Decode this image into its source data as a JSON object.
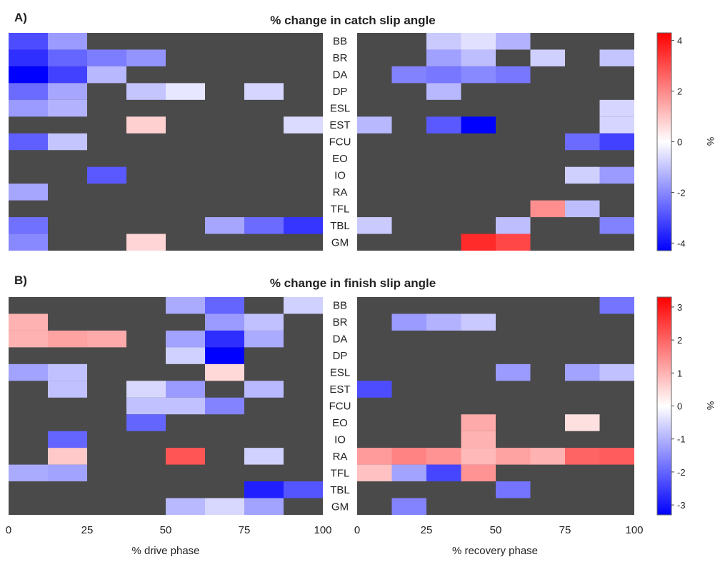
{
  "chart_data": [
    {
      "type": "heatmap",
      "panel_label": "A)",
      "title": "% change in catch slip angle",
      "muscles": [
        "BB",
        "BR",
        "DA",
        "DP",
        "ESL",
        "EST",
        "FCU",
        "EO",
        "IO",
        "RA",
        "TFL",
        "TBL",
        "GM"
      ],
      "colorbar": {
        "label": "%",
        "min": -4.3,
        "max": 4.3,
        "ticks": [
          "4",
          "2",
          "0",
          "-2",
          "-4"
        ],
        "tick_values": [
          4,
          2,
          0,
          -2,
          -4
        ]
      },
      "drive": {
        "xlabel": "",
        "xticks": [],
        "bins_percent": [
          0,
          12.5,
          25,
          37.5,
          50,
          62.5,
          75,
          87.5,
          100
        ],
        "values": [
          [
            -3.0,
            -1.7,
            null,
            null,
            null,
            null,
            null,
            null
          ],
          [
            -3.5,
            -2.6,
            -2.2,
            -1.8,
            null,
            null,
            null,
            null
          ],
          [
            -4.3,
            -3.2,
            -1.2,
            null,
            null,
            null,
            null,
            null
          ],
          [
            -2.5,
            -1.5,
            null,
            -1.0,
            -0.4,
            null,
            -0.7,
            null
          ],
          [
            -1.7,
            -1.3,
            null,
            null,
            null,
            null,
            null,
            null
          ],
          [
            null,
            null,
            null,
            0.8,
            null,
            null,
            null,
            -0.6
          ],
          [
            -2.7,
            -1.0,
            null,
            null,
            null,
            null,
            null,
            null
          ],
          [
            null,
            null,
            null,
            null,
            null,
            null,
            null,
            null
          ],
          [
            null,
            null,
            -2.8,
            null,
            null,
            null,
            null,
            null
          ],
          [
            -1.5,
            null,
            null,
            null,
            null,
            null,
            null,
            null
          ],
          [
            null,
            null,
            null,
            null,
            null,
            null,
            null,
            null
          ],
          [
            -2.4,
            null,
            null,
            null,
            null,
            -1.5,
            -2.5,
            -3.4
          ],
          [
            -2.0,
            null,
            null,
            0.7,
            null,
            null,
            null,
            null
          ]
        ]
      },
      "recovery": {
        "xlabel": "",
        "xticks": [],
        "bins_percent": [
          0,
          12.5,
          25,
          37.5,
          50,
          62.5,
          75,
          87.5,
          100
        ],
        "values": [
          [
            null,
            null,
            -0.9,
            -0.5,
            -1.3,
            null,
            null,
            null
          ],
          [
            null,
            null,
            -1.6,
            -1.1,
            null,
            -0.8,
            null,
            -1.0
          ],
          [
            null,
            -2.1,
            -2.3,
            -2.0,
            -2.3,
            null,
            null,
            null
          ],
          [
            null,
            null,
            -1.2,
            null,
            null,
            null,
            null,
            null
          ],
          [
            null,
            null,
            null,
            null,
            null,
            null,
            null,
            -0.7
          ],
          [
            -1.2,
            null,
            -2.8,
            -4.3,
            null,
            null,
            null,
            -0.7
          ],
          [
            null,
            null,
            null,
            null,
            null,
            null,
            -2.5,
            -3.2
          ],
          [
            null,
            null,
            null,
            null,
            null,
            null,
            null,
            null
          ],
          [
            null,
            null,
            null,
            null,
            null,
            null,
            -0.8,
            -1.7
          ],
          [
            null,
            null,
            null,
            null,
            null,
            null,
            null,
            null
          ],
          [
            null,
            null,
            null,
            null,
            null,
            1.9,
            -1.1,
            null
          ],
          [
            -0.9,
            null,
            null,
            null,
            -1.1,
            null,
            null,
            -2.1
          ],
          [
            null,
            null,
            null,
            3.6,
            3.1,
            null,
            null,
            null
          ]
        ]
      }
    },
    {
      "type": "heatmap",
      "panel_label": "B)",
      "title": "% change in finish slip angle",
      "muscles": [
        "BB",
        "BR",
        "DA",
        "DP",
        "ESL",
        "EST",
        "FCU",
        "EO",
        "IO",
        "RA",
        "TFL",
        "TBL",
        "GM"
      ],
      "colorbar": {
        "label": "%",
        "min": -3.3,
        "max": 3.3,
        "ticks": [
          "3",
          "2",
          "1",
          "0",
          "-1",
          "-2",
          "-3"
        ],
        "tick_values": [
          3,
          2,
          1,
          0,
          -1,
          -2,
          -3
        ]
      },
      "drive": {
        "xlabel": "% drive phase",
        "xticks": [
          "0",
          "25",
          "50",
          "75",
          "100"
        ],
        "bins_percent": [
          0,
          12.5,
          25,
          37.5,
          50,
          62.5,
          75,
          87.5,
          100
        ],
        "values": [
          [
            null,
            null,
            null,
            null,
            -1.1,
            -2.0,
            null,
            -0.6
          ],
          [
            1.0,
            null,
            null,
            null,
            null,
            -1.3,
            -0.8,
            null
          ],
          [
            1.0,
            1.2,
            1.1,
            null,
            -1.2,
            -2.7,
            -1.1,
            null
          ],
          [
            null,
            null,
            null,
            null,
            -0.6,
            -3.3,
            null,
            null
          ],
          [
            -1.2,
            -0.8,
            null,
            null,
            null,
            0.5,
            null,
            null
          ],
          [
            null,
            -0.8,
            null,
            -0.5,
            -1.3,
            null,
            -0.9,
            null
          ],
          [
            null,
            null,
            null,
            -0.8,
            -0.8,
            -1.6,
            null,
            null
          ],
          [
            null,
            null,
            null,
            -2.0,
            null,
            null,
            null,
            null
          ],
          [
            null,
            -2.0,
            null,
            null,
            null,
            null,
            null,
            null
          ],
          [
            null,
            0.7,
            null,
            null,
            2.2,
            null,
            -0.6,
            null
          ],
          [
            -1.1,
            -1.2,
            null,
            null,
            null,
            null,
            null,
            null
          ],
          [
            null,
            null,
            null,
            null,
            null,
            null,
            -2.9,
            -2.2
          ],
          [
            null,
            null,
            null,
            null,
            -0.9,
            -0.5,
            -1.2,
            null
          ]
        ]
      },
      "recovery": {
        "xlabel": "% recovery phase",
        "xticks": [
          "0",
          "25",
          "50",
          "75",
          "100"
        ],
        "bins_percent": [
          0,
          12.5,
          25,
          37.5,
          50,
          62.5,
          75,
          87.5,
          100
        ],
        "values": [
          [
            null,
            null,
            null,
            null,
            null,
            null,
            null,
            -1.8
          ],
          [
            null,
            -1.3,
            -1.0,
            -0.7,
            null,
            null,
            null,
            null
          ],
          [
            null,
            null,
            null,
            null,
            null,
            null,
            null,
            null
          ],
          [
            null,
            null,
            null,
            null,
            null,
            null,
            null,
            null
          ],
          [
            null,
            null,
            null,
            null,
            -1.3,
            null,
            -1.2,
            -0.8
          ],
          [
            -2.3,
            null,
            null,
            null,
            null,
            null,
            null,
            null
          ],
          [
            null,
            null,
            null,
            null,
            null,
            null,
            null,
            null
          ],
          [
            null,
            null,
            null,
            1.1,
            null,
            null,
            0.4,
            null
          ],
          [
            null,
            null,
            null,
            1.0,
            null,
            null,
            null,
            null
          ],
          [
            1.3,
            1.6,
            1.4,
            0.9,
            1.2,
            1.0,
            2.0,
            2.1
          ],
          [
            0.8,
            -1.2,
            -2.4,
            1.4,
            null,
            null,
            null,
            null
          ],
          [
            null,
            null,
            null,
            null,
            -1.8,
            null,
            null,
            null
          ],
          [
            null,
            -1.6,
            null,
            null,
            null,
            null,
            null,
            null
          ]
        ]
      }
    }
  ]
}
